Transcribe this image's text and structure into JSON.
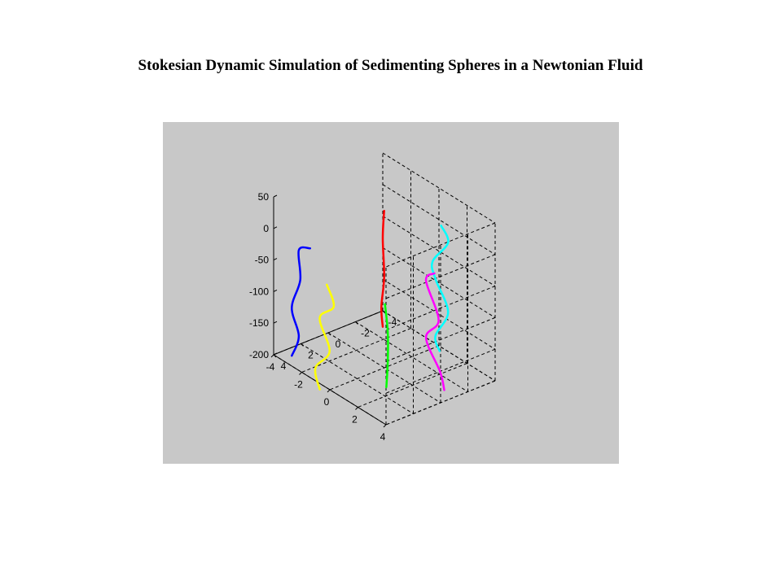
{
  "chart_data": {
    "type": "line3d",
    "title": "Stokesian Dynamic Simulation of Sedimenting Spheres in a Newtonian Fluid",
    "xlabel": "",
    "ylabel": "",
    "zlabel": "",
    "xlim": [
      -4,
      4
    ],
    "ylim": [
      -4,
      4
    ],
    "zlim": [
      -200,
      50
    ],
    "x_ticks": [
      "-4",
      "-2",
      "0",
      "2",
      "4"
    ],
    "y_ticks": [
      "-4",
      "-2",
      "0",
      "2",
      "4"
    ],
    "z_ticks": [
      "50",
      "0",
      "-50",
      "-100",
      "-150",
      "-200"
    ],
    "grid": true,
    "series": [
      {
        "color": "#0000ff",
        "points": [
          [
            -1.6,
            3.8,
            0
          ],
          [
            -2.4,
            3.8,
            -14
          ],
          [
            -2.3,
            3.8,
            -60
          ],
          [
            -2.9,
            3.8,
            -112
          ],
          [
            -2.4,
            3.8,
            -150
          ],
          [
            -2.9,
            3.8,
            -188
          ]
        ]
      },
      {
        "color": "#ffff00",
        "points": [
          [
            -0.8,
            3.4,
            -50
          ],
          [
            -0.4,
            3.3,
            -80
          ],
          [
            -1.4,
            3.3,
            -112
          ],
          [
            -0.7,
            3.3,
            -155
          ],
          [
            -1.7,
            3.3,
            -195
          ],
          [
            -1.4,
            3.3,
            -225
          ]
        ]
      },
      {
        "color": "#ff0000",
        "points": [
          [
            -0.6,
            -0.6,
            35
          ],
          [
            -0.7,
            -0.6,
            -10
          ],
          [
            -0.6,
            -0.6,
            -70
          ],
          [
            -0.8,
            -0.6,
            -120
          ],
          [
            -0.7,
            -0.6,
            -150
          ]
        ]
      },
      {
        "color": "#00ff00",
        "points": [
          [
            1.3,
            1.3,
            -70
          ],
          [
            1.5,
            1.3,
            -110
          ],
          [
            1.5,
            1.3,
            -160
          ],
          [
            1.4,
            1.3,
            -200
          ]
        ]
      },
      {
        "color": "#00ffff",
        "points": [
          [
            1.8,
            -2.3,
            30
          ],
          [
            2.3,
            -2.3,
            10
          ],
          [
            1.2,
            -2.3,
            -35
          ],
          [
            1.4,
            -2.3,
            -60
          ],
          [
            2.3,
            -2.3,
            -100
          ],
          [
            1.4,
            -2.3,
            -150
          ],
          [
            1.7,
            -2.3,
            -170
          ]
        ]
      },
      {
        "color": "#ff00ff",
        "points": [
          [
            2.3,
            -1.3,
            -30
          ],
          [
            1.7,
            -1.3,
            -50
          ],
          [
            2.6,
            -1.3,
            -100
          ],
          [
            1.7,
            -1.3,
            -140
          ],
          [
            2.7,
            -1.3,
            -180
          ],
          [
            3.0,
            -1.3,
            -205
          ]
        ]
      }
    ]
  }
}
